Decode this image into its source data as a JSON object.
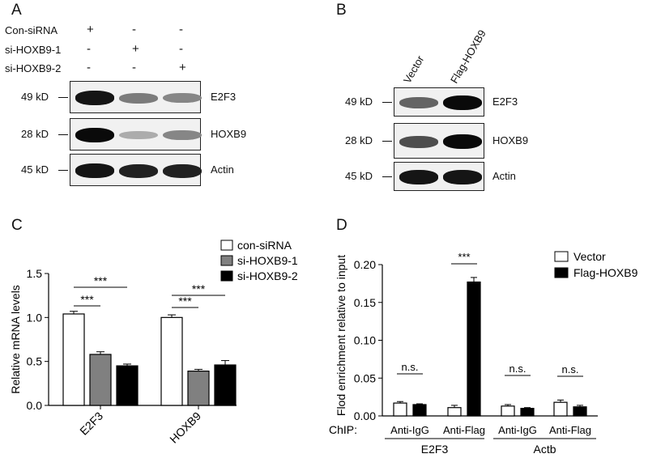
{
  "panels": {
    "A": {
      "letter": "A",
      "conditions": [
        {
          "name": "Con-siRNA",
          "marks": [
            "+",
            "-",
            "-"
          ]
        },
        {
          "name": "si-HOXB9-1",
          "marks": [
            "-",
            "+",
            "-"
          ]
        },
        {
          "name": "si-HOXB9-2",
          "marks": [
            "-",
            "-",
            "+"
          ]
        }
      ],
      "blots": [
        {
          "size": "49 kD",
          "protein": "E2F3",
          "intensity": [
            0.95,
            0.5,
            0.45
          ]
        },
        {
          "size": "28 kD",
          "protein": "HOXB9",
          "intensity": [
            1.0,
            0.28,
            0.45
          ]
        },
        {
          "size": "45 kD",
          "protein": "Actin",
          "intensity": [
            0.95,
            0.9,
            0.9
          ]
        }
      ]
    },
    "B": {
      "letter": "B",
      "lanes": [
        "Vector",
        "Flag-HOXB9"
      ],
      "blots": [
        {
          "size": "49 kD",
          "protein": "E2F3",
          "intensity": [
            0.6,
            1.0
          ]
        },
        {
          "size": "28 kD",
          "protein": "HOXB9",
          "intensity": [
            0.7,
            1.0
          ]
        },
        {
          "size": "45 kD",
          "protein": "Actin",
          "intensity": [
            0.95,
            0.95
          ]
        }
      ]
    },
    "C": {
      "letter": "C"
    },
    "D": {
      "letter": "D"
    }
  },
  "chart_data": [
    {
      "type": "bar",
      "panel": "C",
      "ylabel": "Relative mRNA levels",
      "ylim": [
        0,
        1.5
      ],
      "yticks": [
        "0.0",
        "0.5",
        "1.0",
        "1.5"
      ],
      "categories": [
        "E2F3",
        "HOXB9"
      ],
      "series": [
        {
          "name": "con-siRNA",
          "color": "#ffffff",
          "values": [
            1.04,
            1.0
          ],
          "errors": [
            0.03,
            0.03
          ]
        },
        {
          "name": "si-HOXB9-1",
          "color": "#808080",
          "values": [
            0.58,
            0.39
          ],
          "errors": [
            0.03,
            0.02
          ]
        },
        {
          "name": "si-HOXB9-2",
          "color": "#000000",
          "values": [
            0.45,
            0.46
          ],
          "errors": [
            0.02,
            0.05
          ]
        }
      ],
      "significance": [
        "***",
        "***",
        "***",
        "***"
      ],
      "legend": "top-right"
    },
    {
      "type": "bar",
      "panel": "D",
      "ylabel": "Flod enrichment relative to input",
      "ylim": [
        0,
        0.2
      ],
      "yticks": [
        "0.00",
        "0.05",
        "0.10",
        "0.15",
        "0.20"
      ],
      "xprefix": "ChIP:",
      "categories": [
        "Anti-IgG",
        "Anti-Flag",
        "Anti-IgG",
        "Anti-Flag"
      ],
      "groups": [
        "E2F3",
        "Actb"
      ],
      "series": [
        {
          "name": "Vector",
          "color": "#ffffff",
          "values": [
            0.017,
            0.011,
            0.013,
            0.018
          ],
          "errors": [
            0.002,
            0.003,
            0.002,
            0.003
          ]
        },
        {
          "name": "Flag-HOXB9",
          "color": "#000000",
          "values": [
            0.015,
            0.177,
            0.01,
            0.012
          ],
          "errors": [
            0.001,
            0.006,
            0.001,
            0.002
          ]
        }
      ],
      "significance": [
        "n.s.",
        "***",
        "n.s.",
        "n.s."
      ],
      "legend": "top-right"
    }
  ]
}
